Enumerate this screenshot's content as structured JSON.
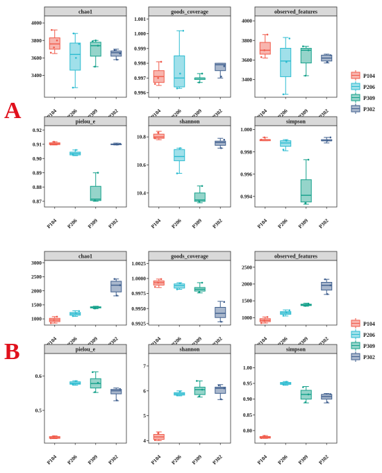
{
  "colors": {
    "P104": "#f05a4a",
    "P206": "#2bbbd0",
    "P309": "#14a08a",
    "P302": "#3f5f8e",
    "strip": "#d9d9d9",
    "label": "#e0101c"
  },
  "legend": [
    "P104",
    "P206",
    "P309",
    "P302"
  ],
  "chart_data": [
    {
      "label": "A",
      "type": "box",
      "groups": [
        "P104",
        "P206",
        "P309",
        "P302"
      ],
      "panels": [
        {
          "title": "chao1",
          "ylim": [
            3150,
            4080
          ],
          "ticks": [
            3400,
            3600,
            3800,
            4000
          ],
          "boxes": [
            {
              "min": 3650,
              "q1": 3700,
              "med": 3760,
              "q3": 3830,
              "max": 3920,
              "points": [
                3660,
                3720,
                3800,
                3920
              ]
            },
            {
              "min": 3260,
              "q1": 3460,
              "med": 3640,
              "q3": 3770,
              "max": 3880,
              "points": [
                3260,
                3600,
                3760,
                3880
              ]
            },
            {
              "min": 3500,
              "q1": 3620,
              "med": 3740,
              "q3": 3780,
              "max": 3800,
              "points": [
                3500,
                3740,
                3790,
                3800
              ]
            },
            {
              "min": 3580,
              "q1": 3620,
              "med": 3660,
              "q3": 3680,
              "max": 3700,
              "points": [
                3580,
                3650,
                3690
              ]
            }
          ]
        },
        {
          "title": "goods_coverage",
          "ylim": [
            0.9957,
            1.0012
          ],
          "ticks": [
            0.996,
            0.997,
            0.998,
            0.999,
            1.0,
            1.001
          ],
          "boxes": [
            {
              "min": 0.9965,
              "q1": 0.9967,
              "med": 0.9971,
              "q3": 0.9975,
              "max": 0.9981,
              "points": [
                0.9966,
                0.997,
                0.9981
              ]
            },
            {
              "min": 0.9963,
              "q1": 0.9964,
              "med": 0.997,
              "q3": 0.9985,
              "max": 1.0002,
              "points": [
                0.9963,
                0.9973,
                1.0002
              ]
            },
            {
              "min": 0.9967,
              "q1": 0.9969,
              "med": 0.997,
              "q3": 0.997,
              "max": 0.9973,
              "points": [
                0.9967,
                0.9973
              ]
            },
            {
              "min": 0.997,
              "q1": 0.9975,
              "med": 0.9979,
              "q3": 0.998,
              "max": 0.998,
              "points": [
                0.9971,
                0.9978
              ]
            }
          ]
        },
        {
          "title": "observed_features",
          "ylim": [
            3220,
            4050
          ],
          "ticks": [
            3400,
            3600,
            3800,
            4000
          ],
          "boxes": [
            {
              "min": 3620,
              "q1": 3660,
              "med": 3700,
              "q3": 3780,
              "max": 3860,
              "points": [
                3630,
                3700,
                3860
              ]
            },
            {
              "min": 3250,
              "q1": 3430,
              "med": 3590,
              "q3": 3720,
              "max": 3830,
              "points": [
                3250,
                3580,
                3820
              ]
            },
            {
              "min": 3440,
              "q1": 3570,
              "med": 3700,
              "q3": 3720,
              "max": 3740,
              "points": [
                3440,
                3700,
                3740
              ]
            },
            {
              "min": 3570,
              "q1": 3590,
              "med": 3620,
              "q3": 3650,
              "max": 3660,
              "points": [
                3580,
                3650
              ]
            }
          ]
        },
        {
          "title": "pielou_e",
          "ylim": [
            0.866,
            0.923
          ],
          "ticks": [
            0.87,
            0.88,
            0.89,
            0.9,
            0.91,
            0.92
          ],
          "boxes": [
            {
              "min": 0.9095,
              "q1": 0.9098,
              "med": 0.9103,
              "q3": 0.911,
              "max": 0.9118,
              "points": [
                0.9098,
                0.9118
              ]
            },
            {
              "min": 0.902,
              "q1": 0.9025,
              "med": 0.9035,
              "q3": 0.9045,
              "max": 0.906,
              "points": [
                0.9028,
                0.906
              ]
            },
            {
              "min": 0.87,
              "q1": 0.8705,
              "med": 0.8715,
              "q3": 0.8805,
              "max": 0.89,
              "points": [
                0.8705,
                0.89
              ]
            },
            {
              "min": 0.9095,
              "q1": 0.9097,
              "med": 0.91,
              "q3": 0.9102,
              "max": 0.9108,
              "points": [
                0.9098,
                0.9104
              ]
            }
          ]
        },
        {
          "title": "shannon",
          "ylim": [
            10.3,
            10.88
          ],
          "ticks": [
            10.4,
            10.6,
            10.8
          ],
          "boxes": [
            {
              "min": 10.78,
              "q1": 10.79,
              "med": 10.8,
              "q3": 10.82,
              "max": 10.84,
              "points": [
                10.79,
                10.83
              ]
            },
            {
              "min": 10.54,
              "q1": 10.63,
              "med": 10.66,
              "q3": 10.71,
              "max": 10.72,
              "points": [
                10.54,
                10.72
              ]
            },
            {
              "min": 10.33,
              "q1": 10.34,
              "med": 10.35,
              "q3": 10.4,
              "max": 10.45,
              "points": [
                10.34,
                10.45
              ]
            },
            {
              "min": 10.72,
              "q1": 10.74,
              "med": 10.76,
              "q3": 10.77,
              "max": 10.79,
              "points": [
                10.72,
                10.78
              ]
            }
          ]
        },
        {
          "title": "simpson",
          "ylim": [
            0.99305,
            1.00035
          ],
          "ticks": [
            0.994,
            0.996,
            0.998,
            1.0
          ],
          "boxes": [
            {
              "min": 0.999,
              "q1": 0.999,
              "med": 0.9991,
              "q3": 0.9991,
              "max": 0.9993,
              "points": [
                0.9991,
                0.9993
              ]
            },
            {
              "min": 0.9981,
              "q1": 0.9985,
              "med": 0.9988,
              "q3": 0.999,
              "max": 0.9991,
              "points": [
                0.9982,
                0.999
              ]
            },
            {
              "min": 0.9933,
              "q1": 0.9935,
              "med": 0.9941,
              "q3": 0.9955,
              "max": 0.9973,
              "points": [
                0.9934,
                0.9973
              ]
            },
            {
              "min": 0.9988,
              "q1": 0.999,
              "med": 0.999,
              "q3": 0.9991,
              "max": 0.9993,
              "points": [
                0.999,
                0.9993
              ]
            }
          ]
        }
      ]
    },
    {
      "label": "B",
      "type": "box",
      "groups": [
        "P104",
        "P206",
        "P309",
        "P302"
      ],
      "panels": [
        {
          "title": "chao1",
          "ylim": [
            780,
            3080
          ],
          "ticks": [
            1000,
            1500,
            2000,
            2500,
            3000
          ],
          "boxes": [
            {
              "min": 850,
              "q1": 900,
              "med": 960,
              "q3": 1020,
              "max": 1080,
              "points": [
                850,
                960,
                1080
              ]
            },
            {
              "min": 1090,
              "q1": 1130,
              "med": 1180,
              "q3": 1230,
              "max": 1290,
              "points": [
                1100,
                1190,
                1280
              ]
            },
            {
              "min": 1360,
              "q1": 1390,
              "med": 1410,
              "q3": 1430,
              "max": 1450,
              "points": [
                1370,
                1430
              ]
            },
            {
              "min": 1820,
              "q1": 1960,
              "med": 2200,
              "q3": 2340,
              "max": 2420,
              "points": [
                1830,
                2200,
                2420
              ]
            }
          ]
        },
        {
          "title": "goods_coverage",
          "ylim": [
            0.99225,
            1.003
          ],
          "ticks": [
            0.9925,
            0.995,
            0.9975,
            1.0,
            1.0025
          ],
          "boxes": [
            {
              "min": 0.9985,
              "q1": 0.9989,
              "med": 0.9993,
              "q3": 0.9996,
              "max": 0.9999,
              "points": [
                0.9986,
                0.9993,
                0.9999
              ]
            },
            {
              "min": 0.9982,
              "q1": 0.9984,
              "med": 0.9988,
              "q3": 0.9991,
              "max": 0.9993,
              "points": [
                0.9982,
                0.9992
              ]
            },
            {
              "min": 0.9976,
              "q1": 0.9979,
              "med": 0.9982,
              "q3": 0.9985,
              "max": 0.9993,
              "points": [
                0.9977,
                0.9993
              ]
            },
            {
              "min": 0.9928,
              "q1": 0.9935,
              "med": 0.9942,
              "q3": 0.9952,
              "max": 0.9962,
              "points": [
                0.9928,
                0.9961
              ]
            }
          ]
        },
        {
          "title": "observed_features",
          "ylim": [
            780,
            2700
          ],
          "ticks": [
            1000,
            1500,
            2000,
            2500
          ],
          "boxes": [
            {
              "min": 840,
              "q1": 880,
              "med": 920,
              "q3": 970,
              "max": 1020,
              "points": [
                840,
                920,
                1020
              ]
            },
            {
              "min": 1050,
              "q1": 1100,
              "med": 1140,
              "q3": 1180,
              "max": 1230,
              "points": [
                1060,
                1150,
                1220
              ]
            },
            {
              "min": 1340,
              "q1": 1360,
              "med": 1380,
              "q3": 1400,
              "max": 1430,
              "points": [
                1350,
                1420
              ]
            },
            {
              "min": 1690,
              "q1": 1820,
              "med": 1960,
              "q3": 2050,
              "max": 2140,
              "points": [
                1700,
                1960,
                2140
              ]
            }
          ]
        },
        {
          "title": "pielou_e",
          "ylim": [
            0.405,
            0.665
          ],
          "ticks": [
            0.5,
            0.6
          ],
          "boxes": [
            {
              "min": 0.418,
              "q1": 0.419,
              "med": 0.421,
              "q3": 0.424,
              "max": 0.426,
              "points": [
                0.419,
                0.425
              ]
            },
            {
              "min": 0.573,
              "q1": 0.576,
              "med": 0.579,
              "q3": 0.583,
              "max": 0.586,
              "points": [
                0.575,
                0.585
              ]
            },
            {
              "min": 0.552,
              "q1": 0.565,
              "med": 0.578,
              "q3": 0.592,
              "max": 0.612,
              "points": [
                0.553,
                0.58,
                0.611
              ]
            },
            {
              "min": 0.528,
              "q1": 0.548,
              "med": 0.557,
              "q3": 0.561,
              "max": 0.565,
              "points": [
                0.529,
                0.562
              ]
            }
          ]
        },
        {
          "title": "shannon",
          "ylim": [
            3.9,
            7.5
          ],
          "ticks": [
            4,
            5,
            6,
            7
          ],
          "boxes": [
            {
              "min": 4.0,
              "q1": 4.05,
              "med": 4.15,
              "q3": 4.25,
              "max": 4.35,
              "points": [
                4.02,
                4.3
              ]
            },
            {
              "min": 5.8,
              "q1": 5.83,
              "med": 5.88,
              "q3": 5.93,
              "max": 6.0,
              "points": [
                5.82,
                5.98
              ]
            },
            {
              "min": 5.75,
              "q1": 5.85,
              "med": 6.05,
              "q3": 6.15,
              "max": 6.4,
              "points": [
                5.78,
                6.05,
                6.4
              ]
            },
            {
              "min": 5.65,
              "q1": 5.9,
              "med": 6.1,
              "q3": 6.15,
              "max": 6.25,
              "points": [
                5.66,
                6.1,
                6.22
              ]
            }
          ]
        },
        {
          "title": "simpson",
          "ylim": [
            0.76,
            1.045
          ],
          "ticks": [
            0.8,
            0.85,
            0.9,
            0.95,
            1.0
          ],
          "boxes": [
            {
              "min": 0.775,
              "q1": 0.776,
              "med": 0.778,
              "q3": 0.781,
              "max": 0.784,
              "points": [
                0.776,
                0.783
              ]
            },
            {
              "min": 0.944,
              "q1": 0.947,
              "med": 0.95,
              "q3": 0.953,
              "max": 0.956,
              "points": [
                0.946,
                0.955
              ]
            },
            {
              "min": 0.888,
              "q1": 0.9,
              "med": 0.915,
              "q3": 0.928,
              "max": 0.94,
              "points": [
                0.89,
                0.915,
                0.938
              ]
            },
            {
              "min": 0.888,
              "q1": 0.9,
              "med": 0.908,
              "q3": 0.915,
              "max": 0.918,
              "points": [
                0.89,
                0.916
              ]
            }
          ]
        }
      ]
    }
  ]
}
